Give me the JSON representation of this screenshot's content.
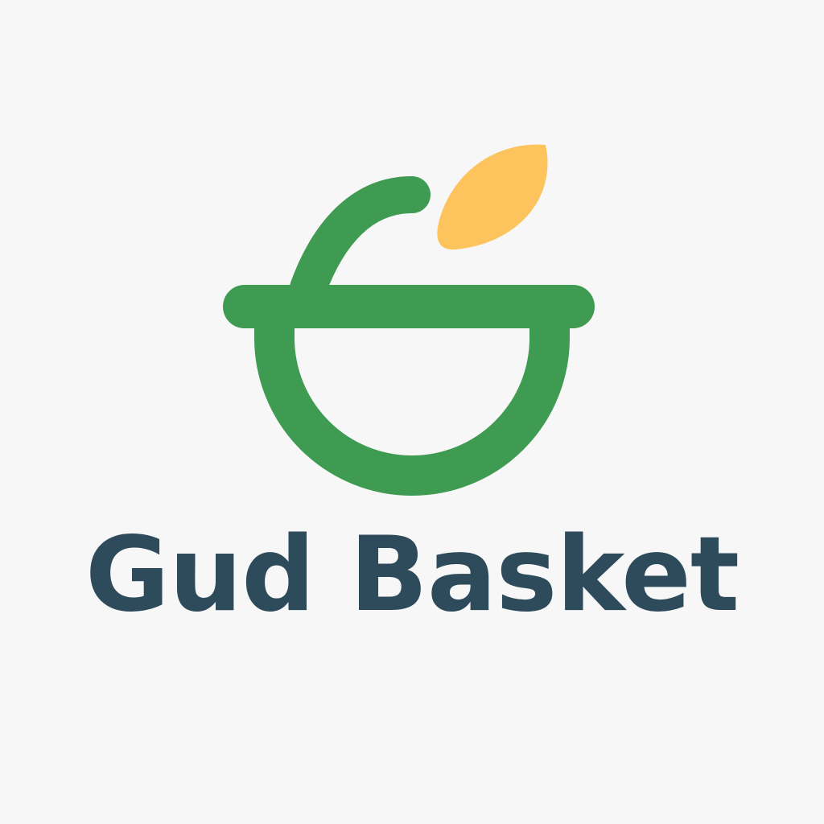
{
  "brand": {
    "name": "Gud Basket"
  },
  "colors": {
    "background": "#f7f7f7",
    "mark_green": "#3f9a52",
    "leaf_yellow": "#fdc35c",
    "wordmark": "#2d4b5b"
  },
  "icons": {
    "mark": "basket-with-leaf-icon"
  }
}
